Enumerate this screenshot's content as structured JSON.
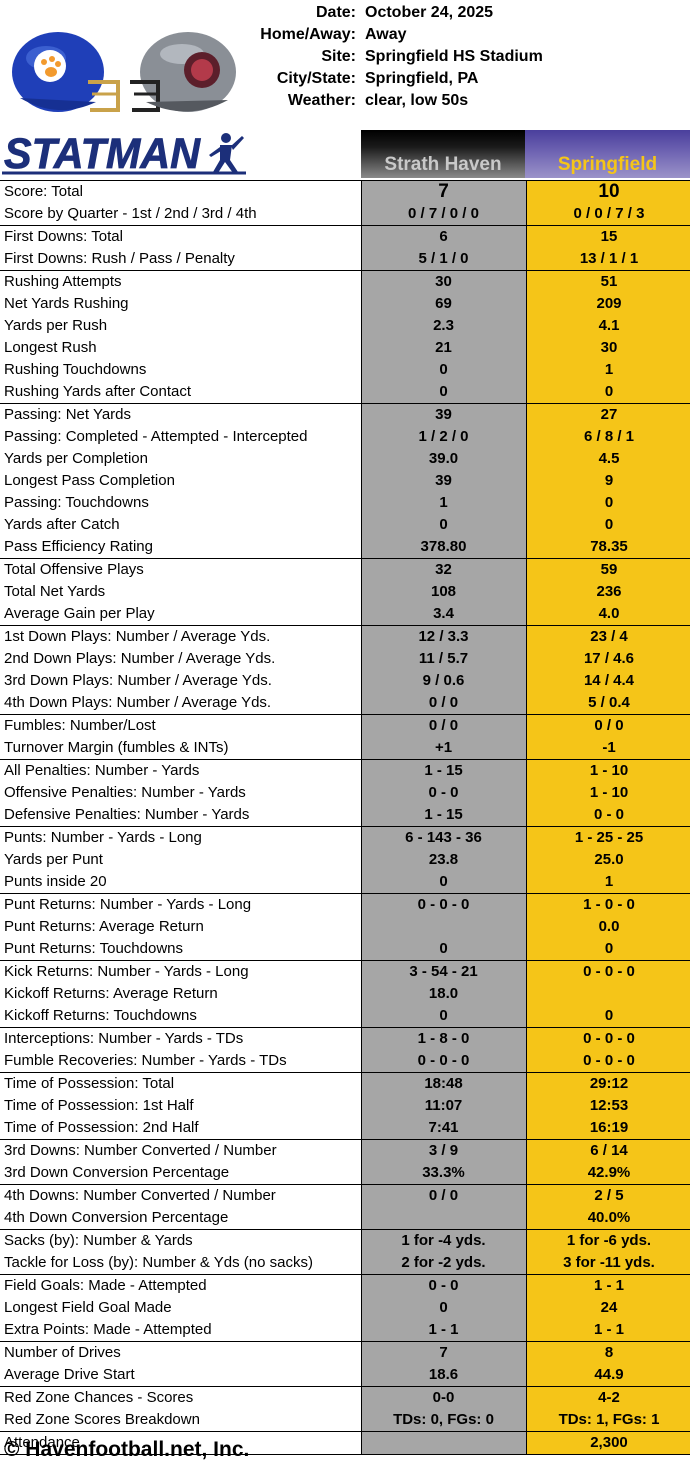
{
  "meta": [
    {
      "label": "Date:",
      "value": "October 24, 2025"
    },
    {
      "label": "Home/Away:",
      "value": "Away"
    },
    {
      "label": "Site:",
      "value": "Springfield HS Stadium"
    },
    {
      "label": "City/State:",
      "value": "Springfield, PA"
    },
    {
      "label": "Weather:",
      "value": "clear, low 50s"
    }
  ],
  "logo": {
    "text": "STATMAN"
  },
  "teams": {
    "away": "Strath Haven",
    "home": "Springfield"
  },
  "colors": {
    "away_bg": "#a6a6a6",
    "home_bg": "#f5c518",
    "away_helmet": "#1f3fb8",
    "home_helmet": "#8a8f96"
  },
  "rows": [
    {
      "label": "Score:  Total",
      "away": "7",
      "home": "10",
      "sep": true,
      "big": true
    },
    {
      "label": "Score by Quarter - 1st / 2nd / 3rd / 4th",
      "away": "0 / 7 / 0 / 0",
      "home": "0 / 0 / 7 / 3"
    },
    {
      "label": "First Downs:  Total",
      "away": "6",
      "home": "15",
      "sep": true
    },
    {
      "label": "First Downs:  Rush / Pass / Penalty",
      "away": "5 / 1 / 0",
      "home": "13 / 1 / 1"
    },
    {
      "label": "Rushing Attempts",
      "away": "30",
      "home": "51",
      "sep": true
    },
    {
      "label": "Net Yards Rushing",
      "away": "69",
      "home": "209"
    },
    {
      "label": "Yards per Rush",
      "away": "2.3",
      "home": "4.1"
    },
    {
      "label": "Longest Rush",
      "away": "21",
      "home": "30"
    },
    {
      "label": "Rushing Touchdowns",
      "away": "0",
      "home": "1"
    },
    {
      "label": "Rushing Yards after Contact",
      "away": "0",
      "home": "0"
    },
    {
      "label": "Passing:  Net Yards",
      "away": "39",
      "home": "27",
      "sep": true
    },
    {
      "label": "Passing:  Completed - Attempted - Intercepted",
      "away": "1 / 2 / 0",
      "home": "6 / 8 / 1"
    },
    {
      "label": "Yards per Completion",
      "away": "39.0",
      "home": "4.5"
    },
    {
      "label": "Longest Pass Completion",
      "away": "39",
      "home": "9"
    },
    {
      "label": "Passing:  Touchdowns",
      "away": "1",
      "home": "0"
    },
    {
      "label": "Yards after Catch",
      "away": "0",
      "home": "0"
    },
    {
      "label": "Pass Efficiency Rating",
      "away": "378.80",
      "home": "78.35"
    },
    {
      "label": "Total Offensive Plays",
      "away": "32",
      "home": "59",
      "sep": true
    },
    {
      "label": "Total Net Yards",
      "away": "108",
      "home": "236"
    },
    {
      "label": "Average Gain per Play",
      "away": "3.4",
      "home": "4.0"
    },
    {
      "label": "1st Down Plays:  Number / Average Yds.",
      "away": "12 / 3.3",
      "home": "23 / 4",
      "sep": true
    },
    {
      "label": "2nd Down Plays:  Number / Average Yds.",
      "away": "11 / 5.7",
      "home": "17 / 4.6"
    },
    {
      "label": "3rd Down Plays:  Number / Average Yds.",
      "away": "9 / 0.6",
      "home": "14 / 4.4"
    },
    {
      "label": "4th Down Plays:  Number / Average Yds.",
      "away": "0 / 0",
      "home": "5 / 0.4"
    },
    {
      "label": "Fumbles:  Number/Lost",
      "away": "0 / 0",
      "home": "0 / 0",
      "sep": true
    },
    {
      "label": "Turnover Margin (fumbles & INTs)",
      "away": "+1",
      "home": "-1"
    },
    {
      "label": "All Penalties:  Number - Yards",
      "away": "1 - 15",
      "home": "1 - 10",
      "sep": true
    },
    {
      "label": "Offensive Penalties:  Number - Yards",
      "away": "0 - 0",
      "home": "1 - 10"
    },
    {
      "label": "Defensive Penalties:  Number - Yards",
      "away": "1 - 15",
      "home": "0 - 0"
    },
    {
      "label": "Punts:  Number - Yards - Long",
      "away": "6 - 143 - 36",
      "home": "1 - 25 - 25",
      "sep": true
    },
    {
      "label": "Yards per Punt",
      "away": "23.8",
      "home": "25.0"
    },
    {
      "label": "Punts inside 20",
      "away": "0",
      "home": "1"
    },
    {
      "label": "Punt Returns:  Number - Yards - Long",
      "away": "0 - 0 - 0",
      "home": "1 - 0 - 0",
      "sep": true
    },
    {
      "label": "Punt Returns:  Average Return",
      "away": "",
      "home": "0.0"
    },
    {
      "label": "Punt Returns:  Touchdowns",
      "away": "0",
      "home": "0"
    },
    {
      "label": "Kick Returns:  Number - Yards - Long",
      "away": "3 - 54 - 21",
      "home": "0 - 0 - 0",
      "sep": true
    },
    {
      "label": "Kickoff Returns:  Average Return",
      "away": "18.0",
      "home": ""
    },
    {
      "label": "Kickoff Returns:  Touchdowns",
      "away": "0",
      "home": "0"
    },
    {
      "label": "Interceptions: Number - Yards - TDs",
      "away": "1 - 8 - 0",
      "home": "0 - 0 - 0",
      "sep": true
    },
    {
      "label": "Fumble Recoveries: Number - Yards - TDs",
      "away": "0 - 0 - 0",
      "home": "0 - 0 - 0"
    },
    {
      "label": "Time of Possession:  Total",
      "away": "18:48",
      "home": "29:12",
      "sep": true
    },
    {
      "label": "Time of Possession:  1st Half",
      "away": "11:07",
      "home": "12:53"
    },
    {
      "label": "Time of Possession:  2nd Half",
      "away": "7:41",
      "home": "16:19"
    },
    {
      "label": "3rd Downs:  Number Converted / Number",
      "away": "3 / 9",
      "home": "6 / 14",
      "sep": true
    },
    {
      "label": "3rd Down Conversion Percentage",
      "away": "33.3%",
      "home": "42.9%"
    },
    {
      "label": "4th Downs:  Number Converted / Number",
      "away": "0 / 0",
      "home": "2 / 5",
      "sep": true
    },
    {
      "label": "4th Down Conversion Percentage",
      "away": "",
      "home": "40.0%"
    },
    {
      "label": "Sacks (by):  Number & Yards",
      "away": "1 for -4 yds.",
      "home": "1 for -6 yds.",
      "sep": true
    },
    {
      "label": "Tackle for Loss (by): Number & Yds (no sacks)",
      "away": "2 for -2 yds.",
      "home": "3 for -11 yds."
    },
    {
      "label": "Field Goals:  Made - Attempted",
      "away": "0 - 0",
      "home": "1 - 1",
      "sep": true
    },
    {
      "label": "Longest Field Goal Made",
      "away": "0",
      "home": "24"
    },
    {
      "label": "Extra Points:  Made - Attempted",
      "away": "1 - 1",
      "home": "1 - 1"
    },
    {
      "label": "Number of Drives",
      "away": "7",
      "home": "8",
      "sep": true
    },
    {
      "label": "Average Drive Start",
      "away": "18.6",
      "home": "44.9"
    },
    {
      "label": "Red Zone Chances - Scores",
      "away": "0-0",
      "home": "4-2",
      "sep": true
    },
    {
      "label": "Red Zone Scores Breakdown",
      "away": "TDs: 0, FGs: 0",
      "home": "TDs: 1, FGs: 1"
    },
    {
      "label": "Attendance",
      "away": "",
      "home": "2,300",
      "sep": true,
      "last": true
    }
  ],
  "footer": "© Havenfootball.net, Inc."
}
